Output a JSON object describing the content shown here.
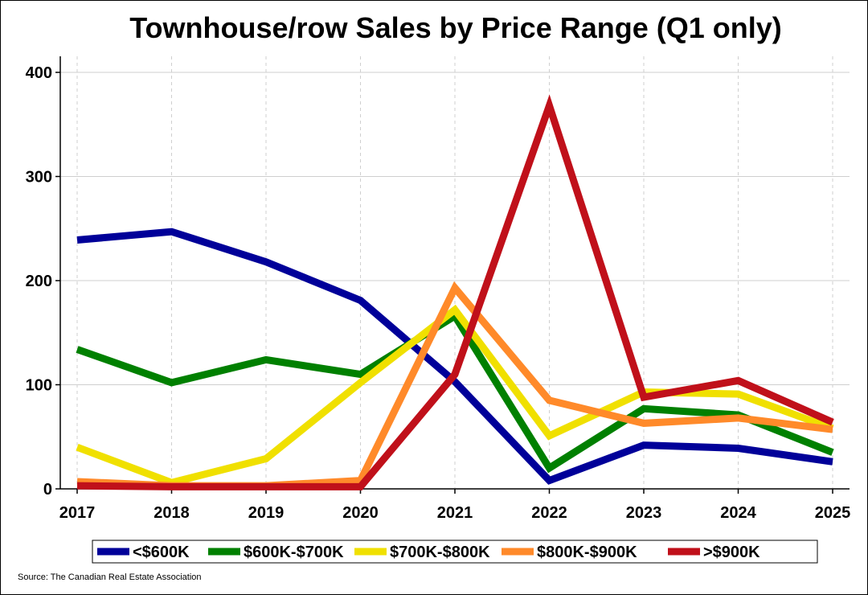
{
  "chart_data": {
    "type": "line",
    "title": "Townhouse/row Sales by Price Range (Q1 only)",
    "x": [
      "2017",
      "2018",
      "2019",
      "2020",
      "2021",
      "2022",
      "2023",
      "2024",
      "2025"
    ],
    "ylim": [
      0,
      400
    ],
    "yticks": [
      0,
      100,
      200,
      300,
      400
    ],
    "grid": true,
    "legend_position": "bottom",
    "series": [
      {
        "name": "<$600K",
        "color": "#000099",
        "values": [
          239,
          247,
          218,
          181,
          103,
          8,
          42,
          39,
          26
        ]
      },
      {
        "name": "$600K-$700K",
        "color": "#008000",
        "values": [
          134,
          102,
          124,
          110,
          166,
          20,
          77,
          71,
          35
        ]
      },
      {
        "name": "$700K-$800K",
        "color": "#f0e000",
        "values": [
          40,
          6,
          29,
          102,
          172,
          51,
          93,
          91,
          58
        ]
      },
      {
        "name": "$800K-$900K",
        "color": "#ff8a2a",
        "values": [
          7,
          3,
          3,
          8,
          193,
          85,
          63,
          68,
          57
        ]
      },
      {
        "name": ">$900K",
        "color": "#c0101a",
        "values": [
          3,
          2,
          2,
          2,
          110,
          368,
          88,
          104,
          64
        ]
      }
    ]
  },
  "source": "Source: The Canadian Real Estate Association"
}
